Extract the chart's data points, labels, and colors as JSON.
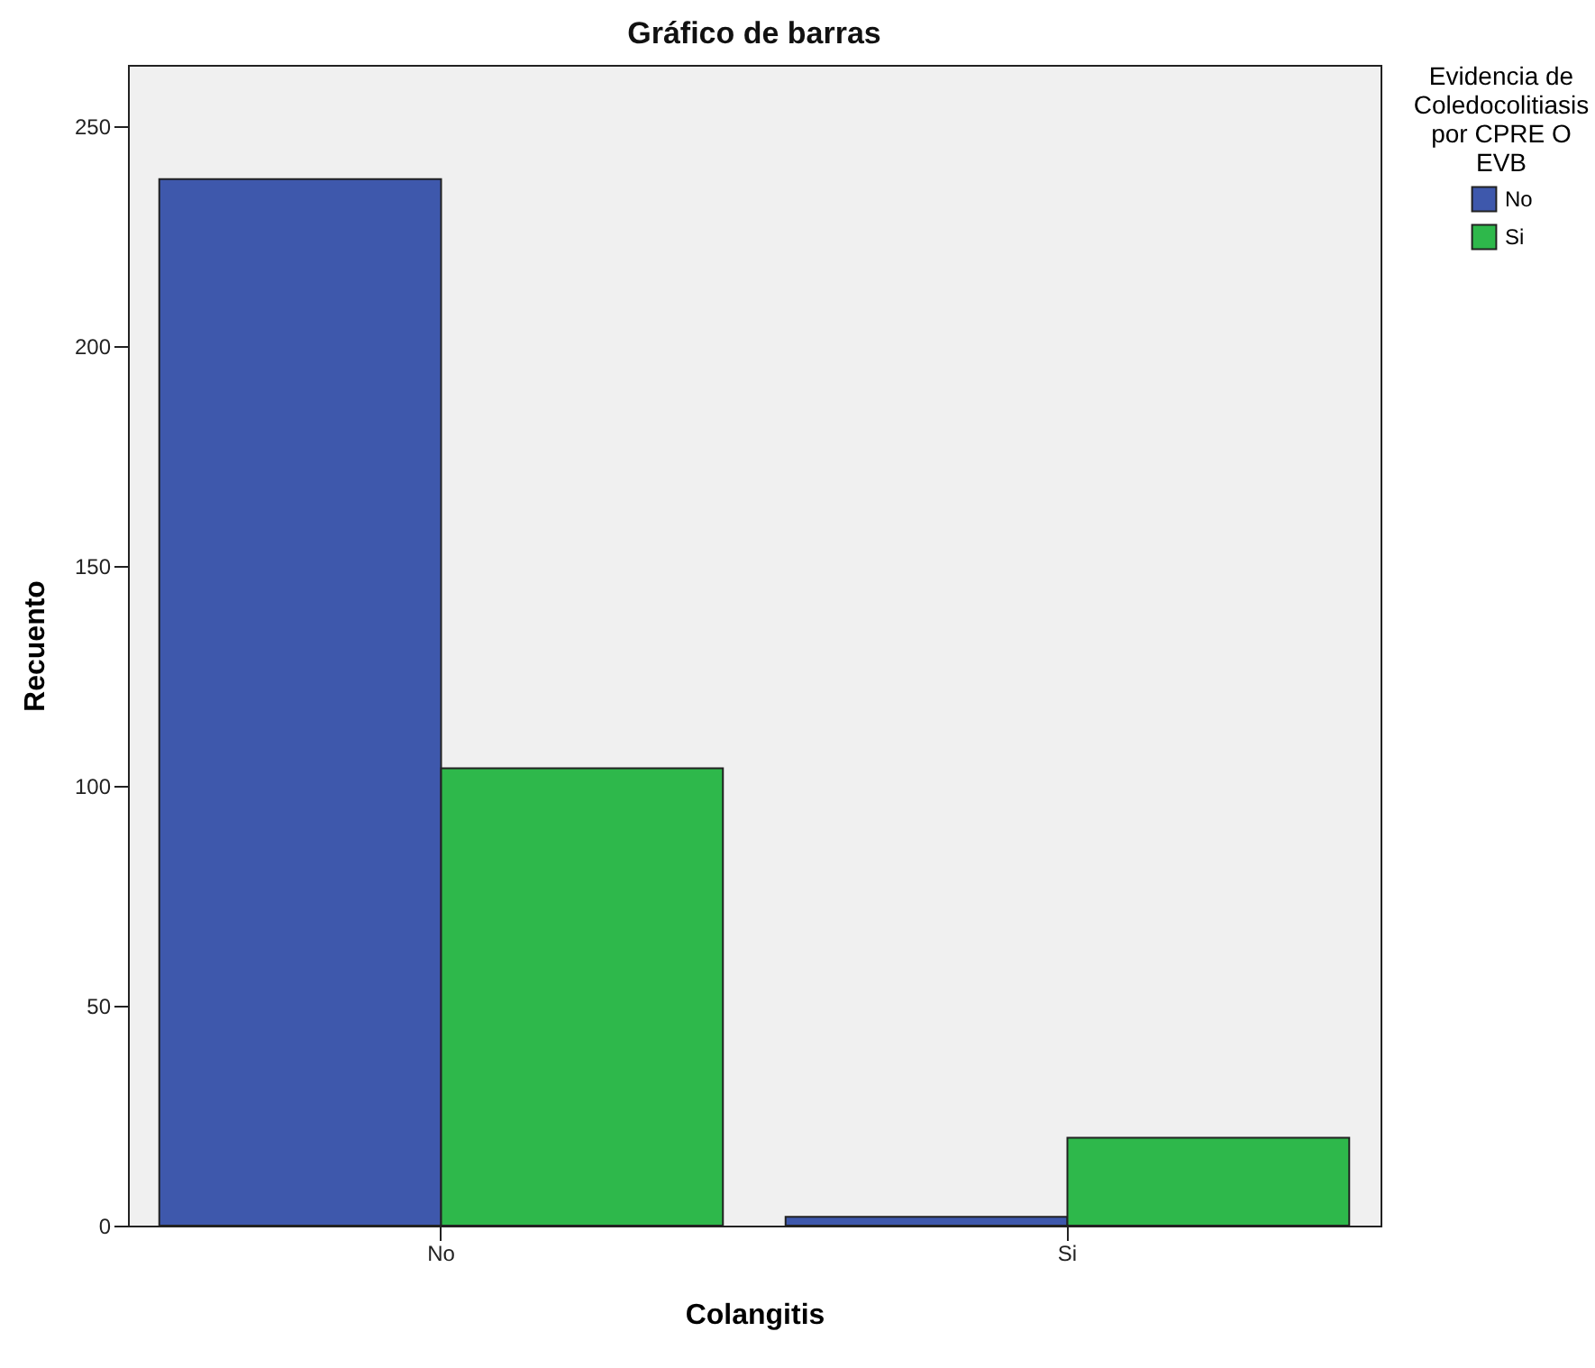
{
  "chart_data": {
    "type": "bar",
    "title": "Gráfico de barras",
    "xlabel": "Colangitis",
    "ylabel": "Recuento",
    "legend_title": "Evidencia de Coledocolitiasis por CPRE O EVB",
    "categories": [
      "No",
      "Si"
    ],
    "series": [
      {
        "name": "No",
        "color": "#3e58ac",
        "values": [
          238,
          2
        ]
      },
      {
        "name": "Si",
        "color": "#2eb84b",
        "values": [
          104,
          20
        ]
      }
    ],
    "ylim": [
      0,
      264
    ],
    "yticks": [
      0,
      50,
      100,
      150,
      200,
      250
    ],
    "grid": false,
    "legend": "top right"
  }
}
